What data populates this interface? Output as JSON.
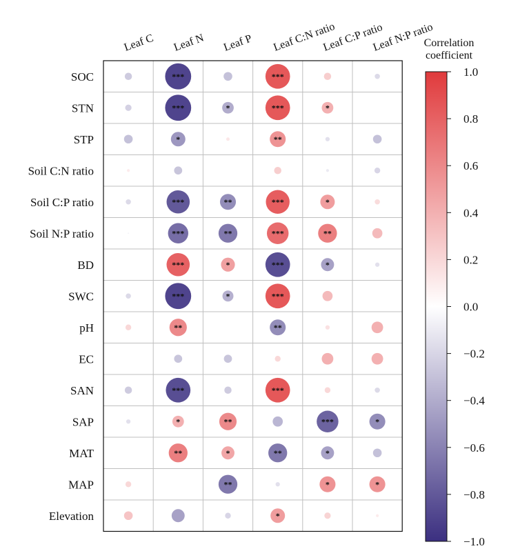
{
  "chart_data": {
    "type": "heatmap",
    "title": "",
    "columns": [
      "Leaf C",
      "Leaf N",
      "Leaf P",
      "Leaf C:N ratio",
      "Leaf C:P ratio",
      "Leaf N:P ratio"
    ],
    "rows": [
      "SOC",
      "STN",
      "STP",
      "Soil C:N ratio",
      "Soil C:P ratio",
      "Soil N:P ratio",
      "BD",
      "SWC",
      "pH",
      "EC",
      "SAN",
      "SAP",
      "MAT",
      "MAP",
      "Elevation"
    ],
    "values": [
      [
        -0.25,
        -0.9,
        -0.3,
        0.85,
        0.25,
        -0.18
      ],
      [
        -0.22,
        -0.9,
        -0.4,
        0.85,
        0.4,
        0.0
      ],
      [
        -0.3,
        -0.5,
        0.12,
        0.55,
        -0.15,
        -0.3
      ],
      [
        0.1,
        -0.28,
        0.0,
        0.25,
        -0.1,
        -0.2
      ],
      [
        -0.18,
        -0.8,
        -0.55,
        0.82,
        0.5,
        0.18
      ],
      [
        -0.05,
        -0.7,
        -0.65,
        0.75,
        0.65,
        0.35
      ],
      [
        0.0,
        0.8,
        0.48,
        -0.85,
        -0.45,
        -0.15
      ],
      [
        -0.18,
        -0.9,
        -0.38,
        0.85,
        0.35,
        0.0
      ],
      [
        0.2,
        0.6,
        0.0,
        -0.55,
        0.15,
        0.4
      ],
      [
        0.0,
        -0.28,
        -0.28,
        0.2,
        0.4,
        0.4
      ],
      [
        -0.25,
        -0.85,
        -0.25,
        0.85,
        0.2,
        -0.18
      ],
      [
        -0.15,
        0.4,
        0.6,
        -0.35,
        -0.75,
        -0.55
      ],
      [
        0.0,
        0.65,
        0.45,
        -0.65,
        -0.45,
        -0.3
      ],
      [
        0.2,
        0.02,
        -0.65,
        -0.15,
        0.55,
        0.55
      ],
      [
        0.3,
        -0.45,
        -0.2,
        0.5,
        0.22,
        0.1
      ]
    ],
    "significance": [
      [
        "",
        "***",
        "",
        "***",
        "",
        ""
      ],
      [
        "",
        "***",
        "*",
        "***",
        "*",
        ""
      ],
      [
        "",
        "*",
        "",
        "**",
        "",
        ""
      ],
      [
        "",
        "",
        "",
        "",
        "",
        ""
      ],
      [
        "",
        "***",
        "**",
        "***",
        "*",
        ""
      ],
      [
        "",
        "***",
        "**",
        "***",
        "**",
        ""
      ],
      [
        "",
        "***",
        "*",
        "***",
        "*",
        ""
      ],
      [
        "",
        "***",
        "*",
        "***",
        "",
        ""
      ],
      [
        "",
        "**",
        "",
        "**",
        "",
        ""
      ],
      [
        "",
        "",
        "",
        "",
        "",
        ""
      ],
      [
        "",
        "***",
        "",
        "***",
        "",
        ""
      ],
      [
        "",
        "*",
        "**",
        "",
        "***",
        "*"
      ],
      [
        "",
        "**",
        "*",
        "**",
        "*",
        ""
      ],
      [
        "",
        "",
        "**",
        "",
        "*",
        "*"
      ],
      [
        "",
        "",
        "",
        "*",
        "",
        ""
      ]
    ],
    "legend": {
      "title_line1": "Correlation",
      "title_line2": "coefficient",
      "range": [
        -1.0,
        1.0
      ],
      "ticks": [
        1.0,
        0.8,
        0.6,
        0.4,
        0.2,
        0.0,
        -0.2,
        -0.4,
        -0.6,
        -0.8,
        -1.0
      ],
      "tick_labels": [
        "1.0",
        "0.8",
        "0.6",
        "0.4",
        "0.2",
        "0.0",
        "−0.2",
        "−0.4",
        "−0.6",
        "−0.8",
        "−1.0"
      ],
      "placement": "right"
    },
    "colors": {
      "positive": "#e03a3c",
      "neutral": "#ffffff",
      "negative": "#3b2f80",
      "grid": "#bfbfbf",
      "border": "#111111"
    }
  }
}
